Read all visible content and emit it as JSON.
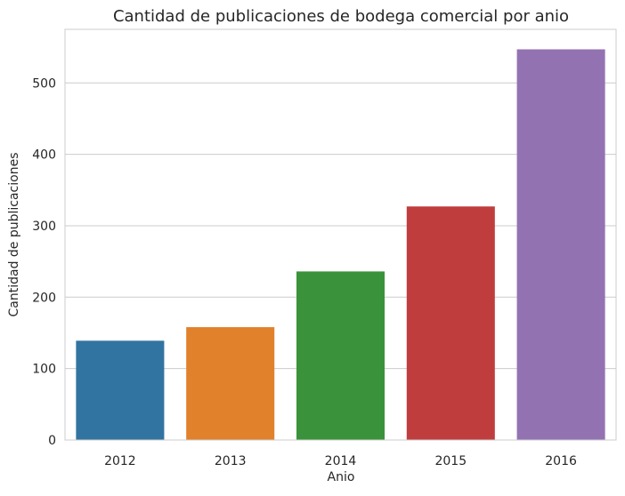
{
  "chart_data": {
    "type": "bar",
    "title": "Cantidad de publicaciones de bodega comercial por anio",
    "xlabel": "Anio",
    "ylabel": "Cantidad de publicaciones",
    "categories": [
      "2012",
      "2013",
      "2014",
      "2015",
      "2016"
    ],
    "values": [
      139,
      158,
      236,
      327,
      547
    ],
    "ylim": [
      0,
      575
    ],
    "yticks": [
      0,
      100,
      200,
      300,
      400,
      500
    ],
    "grid": "horizontal",
    "colors": [
      "#3274a1",
      "#e1812c",
      "#3a923a",
      "#c03d3e",
      "#9372b2"
    ]
  },
  "style": {
    "grid_color": "#cccccc",
    "frame_color": "#cccccc",
    "background": "#ffffff"
  }
}
